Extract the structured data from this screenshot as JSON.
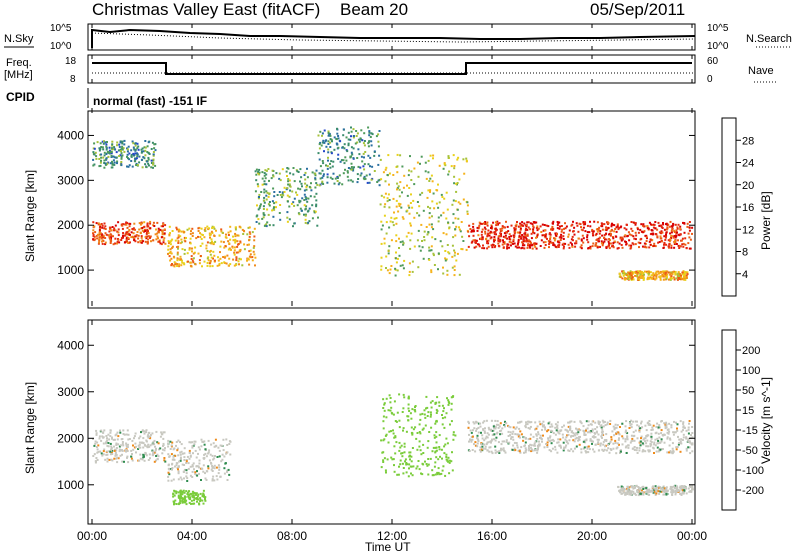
{
  "header": {
    "title": "Christmas Valley East (fitACF)",
    "beam": "Beam 20",
    "date": "05/Sep/2011"
  },
  "summary_panels": {
    "nsky_label": "N.Sky",
    "nsearch_label": "N.Search",
    "noise_ticks": [
      "10^5",
      "10^0"
    ],
    "freq_label_1": "Freq.",
    "freq_label_2": "[MHz]",
    "freq_ticks": [
      "18",
      "8"
    ],
    "nave_ticks": [
      "60",
      "0"
    ],
    "nave_label": "Nave",
    "cpid_label": "CPID",
    "cpid_value": "normal (fast) -151 IF"
  },
  "chart_data": [
    {
      "type": "heatmap",
      "title": "",
      "parameter": "Power",
      "ylabel": "Slant Range [km]",
      "xlabel": "",
      "x_range_hours": [
        0,
        24
      ],
      "ylim_km": [
        200,
        4500
      ],
      "ytick_labels": [
        "1000",
        "2000",
        "3000",
        "4000"
      ],
      "colorbar": {
        "label": "Power [dB]",
        "tick_labels": [
          "4",
          "8",
          "12",
          "16",
          "20",
          "24",
          "28"
        ],
        "colors": [
          "#0000ff",
          "#2346c8",
          "#2a6fa0",
          "#3a8c6a",
          "#4e9a5a",
          "#a6c23a",
          "#e8d11a",
          "#f5b21a",
          "#f08a1a",
          "#ec5a14",
          "#e52a10",
          "#d80000"
        ]
      },
      "bands": [
        {
          "t0": 0.0,
          "t1": 2.9,
          "r0": 1600,
          "r1": 2100,
          "level": 24
        },
        {
          "t0": 3.0,
          "t1": 6.5,
          "r0": 1100,
          "r1": 2000,
          "level": 18
        },
        {
          "t0": 6.5,
          "t1": 9.0,
          "r0": 2000,
          "r1": 3300,
          "level": 10
        },
        {
          "t0": 9.0,
          "t1": 11.5,
          "r0": 2900,
          "r1": 4200,
          "level": 8
        },
        {
          "t0": 11.5,
          "t1": 15.0,
          "r0": 900,
          "r1": 3600,
          "level": 14
        },
        {
          "t0": 15.0,
          "t1": 24.0,
          "r0": 1500,
          "r1": 2100,
          "level": 26
        },
        {
          "t0": 21.0,
          "t1": 23.8,
          "r0": 800,
          "r1": 1000,
          "level": 18
        },
        {
          "t0": 0.0,
          "t1": 2.5,
          "r0": 3300,
          "r1": 3900,
          "level": 8
        }
      ]
    },
    {
      "type": "heatmap",
      "title": "",
      "parameter": "Velocity",
      "ylabel": "Slant Range [km]",
      "xlabel": "Time UT",
      "x_range_hours": [
        0,
        24
      ],
      "xtick_labels": [
        "00:00",
        "04:00",
        "08:00",
        "12:00",
        "16:00",
        "20:00",
        "00:00"
      ],
      "ylim_km": [
        200,
        4500
      ],
      "ytick_labels": [
        "1000",
        "2000",
        "3000",
        "4000"
      ],
      "colorbar": {
        "label": "Velocity [m s^-1]",
        "tick_labels": [
          "200",
          "100",
          "50",
          "15",
          "-15",
          "-50",
          "-100",
          "-200"
        ],
        "colors": [
          "#1a2a9a",
          "#2a5ab8",
          "#2e8c4e",
          "#7acc3a",
          "#c8c8c0",
          "#c8c8c0",
          "#e8b01a",
          "#ee8a1a",
          "#e85a14",
          "#e52a10"
        ]
      },
      "bands": [
        {
          "t0": 0.0,
          "t1": 2.9,
          "r0": 1500,
          "r1": 2200,
          "level": 0
        },
        {
          "t0": 3.0,
          "t1": 5.5,
          "r0": 1100,
          "r1": 2000,
          "level": 0
        },
        {
          "t0": 3.2,
          "t1": 4.5,
          "r0": 600,
          "r1": 900,
          "level": 30
        },
        {
          "t0": 11.5,
          "t1": 14.5,
          "r0": 1200,
          "r1": 3000,
          "level": 25
        },
        {
          "t0": 15.0,
          "t1": 24.0,
          "r0": 1700,
          "r1": 2400,
          "level": 0
        },
        {
          "t0": 21.0,
          "t1": 24.0,
          "r0": 800,
          "r1": 1000,
          "level": 0
        }
      ]
    }
  ]
}
